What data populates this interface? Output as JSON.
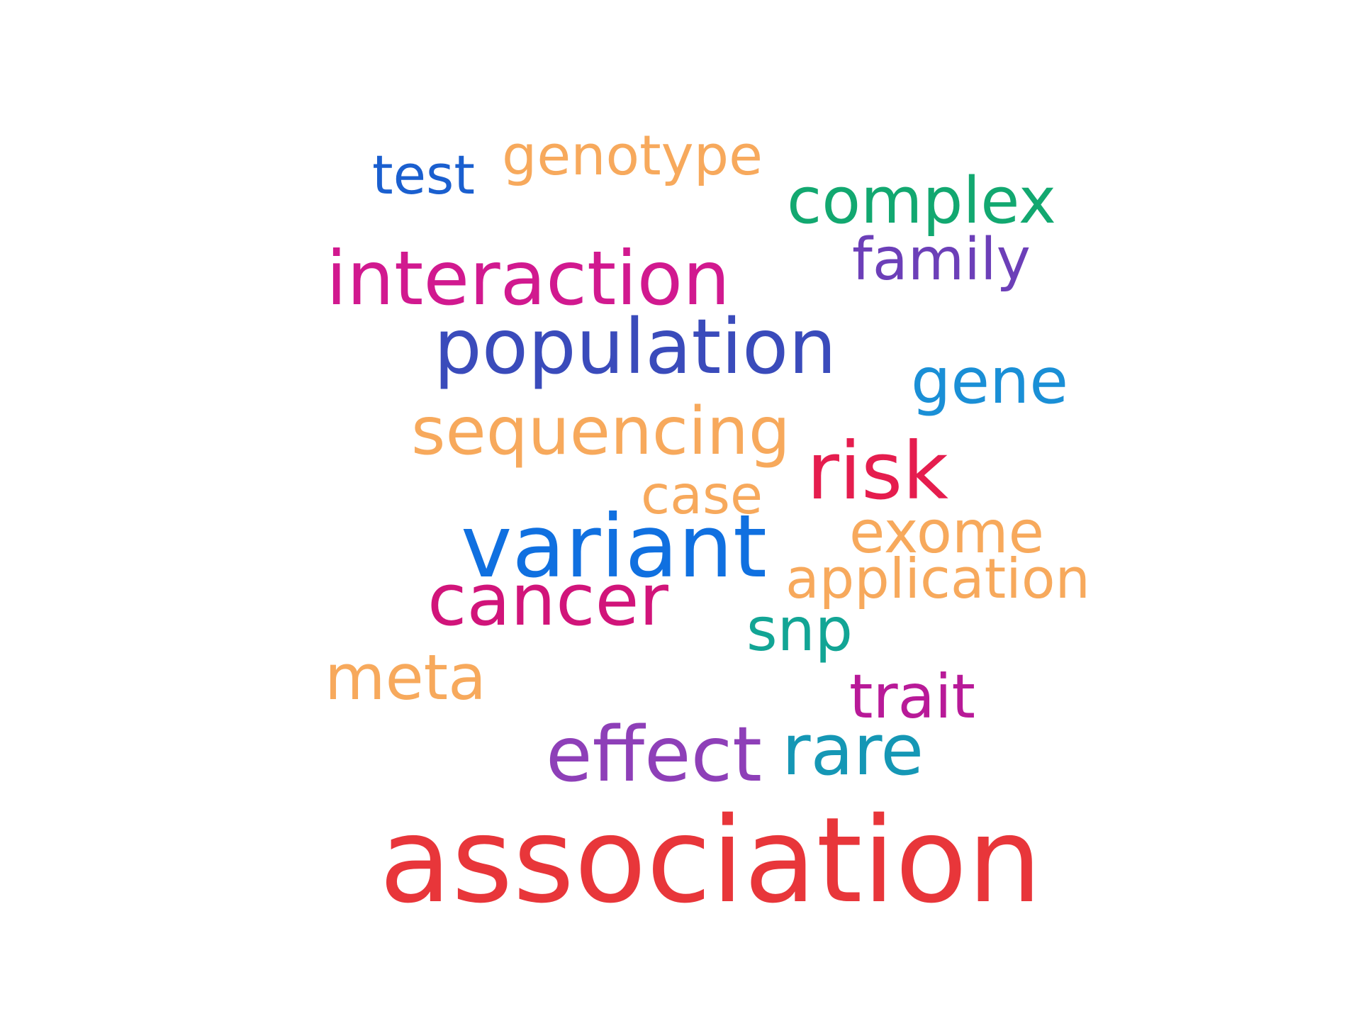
{
  "words": [
    {
      "id": "test",
      "text": "test",
      "color": "#1a5fcf"
    },
    {
      "id": "genotype",
      "text": "genotype",
      "color": "#f7a95c"
    },
    {
      "id": "complex",
      "text": "complex",
      "color": "#12a870"
    },
    {
      "id": "family",
      "text": "family",
      "color": "#6c3fb8"
    },
    {
      "id": "interaction",
      "text": "interaction",
      "color": "#d1198f"
    },
    {
      "id": "population",
      "text": "population",
      "color": "#3a4bbb"
    },
    {
      "id": "gene",
      "text": "gene",
      "color": "#1a8fd6"
    },
    {
      "id": "sequencing",
      "text": "sequencing",
      "color": "#f7a95c"
    },
    {
      "id": "risk",
      "text": "risk",
      "color": "#e51d4e"
    },
    {
      "id": "case",
      "text": "case",
      "color": "#f7a95c"
    },
    {
      "id": "exome",
      "text": "exome",
      "color": "#f7a95c"
    },
    {
      "id": "variant",
      "text": "variant",
      "color": "#1070e0"
    },
    {
      "id": "application",
      "text": "application",
      "color": "#f7a95c"
    },
    {
      "id": "cancer",
      "text": "cancer",
      "color": "#d1147a"
    },
    {
      "id": "snp",
      "text": "snp",
      "color": "#12a595"
    },
    {
      "id": "meta",
      "text": "meta",
      "color": "#f7a95c"
    },
    {
      "id": "trait",
      "text": "trait",
      "color": "#b81a98"
    },
    {
      "id": "effect",
      "text": "effect",
      "color": "#8e3fb8"
    },
    {
      "id": "rare",
      "text": "rare",
      "color": "#1597b5"
    },
    {
      "id": "association",
      "text": "association",
      "color": "#e8363a"
    }
  ]
}
